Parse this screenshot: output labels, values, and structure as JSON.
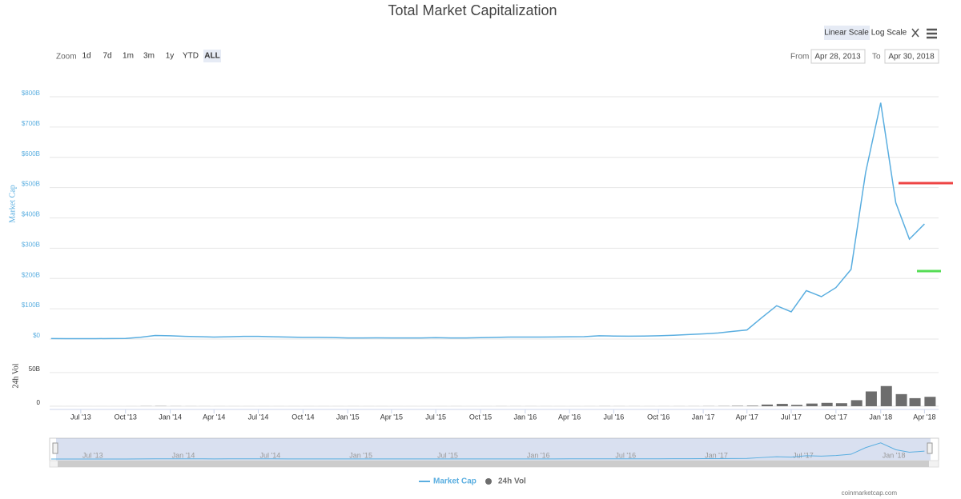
{
  "chart_data": {
    "type": "line",
    "title": "Total Market Capitalization",
    "zoom_label": "Zoom",
    "zoom_buttons": [
      "1d",
      "7d",
      "1m",
      "3m",
      "1y",
      "YTD",
      "ALL"
    ],
    "scale_buttons": [
      "Linear Scale",
      "Log Scale"
    ],
    "log_scale": false,
    "from_label": "From",
    "from_date": "Apr 28, 2013",
    "to_label": "To",
    "to_date": "Apr 30, 2018",
    "y_label": "Market Cap",
    "y2_label": "24h Vol",
    "credit": "coinmarketcap.com",
    "grid": true,
    "legend": "bottom",
    "xlim": [
      "2013-04-28",
      "2018-04-30"
    ],
    "xticks": [
      {
        "value": "2013-07",
        "label": "Jul '13"
      },
      {
        "value": "2013-10",
        "label": "Oct '13"
      },
      {
        "value": "2014-01",
        "label": "Jan '14"
      },
      {
        "value": "2014-04",
        "label": "Apr '14"
      },
      {
        "value": "2014-07",
        "label": "Jul '14"
      },
      {
        "value": "2014-10",
        "label": "Oct '14"
      },
      {
        "value": "2015-01",
        "label": "Jan '15"
      },
      {
        "value": "2015-04",
        "label": "Apr '15"
      },
      {
        "value": "2015-07",
        "label": "Jul '15"
      },
      {
        "value": "2015-10",
        "label": "Oct '15"
      },
      {
        "value": "2016-01",
        "label": "Jan '16"
      },
      {
        "value": "2016-04",
        "label": "Apr '16"
      },
      {
        "value": "2016-07",
        "label": "Jul '16"
      },
      {
        "value": "2016-10",
        "label": "Oct '16"
      },
      {
        "value": "2017-01",
        "label": "Jan '17"
      },
      {
        "value": "2017-04",
        "label": "Apr '17"
      },
      {
        "value": "2017-07",
        "label": "Jul '17"
      },
      {
        "value": "2017-10",
        "label": "Oct '17"
      },
      {
        "value": "2018-01",
        "label": "Jan '18"
      },
      {
        "value": "2018-04",
        "label": "Apr '18"
      }
    ],
    "ylim": [
      0,
      850
    ],
    "yticks": [
      {
        "value": 0,
        "label": "$0"
      },
      {
        "value": 100,
        "label": "$100B"
      },
      {
        "value": 200,
        "label": "$200B"
      },
      {
        "value": 300,
        "label": "$300B"
      },
      {
        "value": 400,
        "label": "$400B"
      },
      {
        "value": 500,
        "label": "$500B"
      },
      {
        "value": 600,
        "label": "$600B"
      },
      {
        "value": 700,
        "label": "$700B"
      },
      {
        "value": 800,
        "label": "$800B"
      }
    ],
    "y2lim": [
      0,
      63
    ],
    "y2ticks": [
      0,
      {
        "value": 50,
        "label": "50B"
      }
    ],
    "x": [
      "2013-05",
      "2013-06",
      "2013-07",
      "2013-08",
      "2013-09",
      "2013-10",
      "2013-11",
      "2013-12",
      "2014-01",
      "2014-02",
      "2014-03",
      "2014-04",
      "2014-05",
      "2014-06",
      "2014-07",
      "2014-08",
      "2014-09",
      "2014-10",
      "2014-11",
      "2014-12",
      "2015-01",
      "2015-02",
      "2015-03",
      "2015-04",
      "2015-05",
      "2015-06",
      "2015-07",
      "2015-08",
      "2015-09",
      "2015-10",
      "2015-11",
      "2015-12",
      "2016-01",
      "2016-02",
      "2016-03",
      "2016-04",
      "2016-05",
      "2016-06",
      "2016-07",
      "2016-08",
      "2016-09",
      "2016-10",
      "2016-11",
      "2016-12",
      "2017-01",
      "2017-02",
      "2017-03",
      "2017-04",
      "2017-05",
      "2017-06",
      "2017-07",
      "2017-08",
      "2017-09",
      "2017-10",
      "2017-11",
      "2017-12",
      "2018-01",
      "2018-02",
      "2018-03",
      "2018-04"
    ],
    "series": [
      {
        "name": "Market Cap",
        "color": "#5aaee0",
        "values": [
          1.5,
          1.3,
          1.2,
          1.4,
          1.6,
          2,
          6,
          12,
          11,
          9,
          8,
          6.5,
          7.5,
          9,
          9,
          7.5,
          6.5,
          5.5,
          5.5,
          5,
          3.5,
          3.5,
          4,
          3.5,
          3.5,
          3.7,
          4.5,
          3.7,
          3.6,
          4.5,
          5.5,
          6.5,
          6.5,
          6.5,
          7,
          7.5,
          8,
          11,
          10,
          9.5,
          10,
          11,
          12.5,
          15,
          17,
          20,
          25,
          30,
          70,
          110,
          90,
          160,
          140,
          170,
          230,
          550,
          780,
          450,
          330,
          380
        ]
      },
      {
        "name": "24h Vol",
        "color": "#6d6d6d",
        "axis": "y2",
        "values": [
          0.02,
          0.02,
          0.02,
          0.02,
          0.02,
          0.05,
          0.2,
          0.3,
          0.15,
          0.1,
          0.08,
          0.06,
          0.05,
          0.05,
          0.04,
          0.04,
          0.05,
          0.04,
          0.04,
          0.04,
          0.06,
          0.04,
          0.04,
          0.03,
          0.02,
          0.03,
          0.05,
          0.06,
          0.03,
          0.04,
          0.1,
          0.08,
          0.07,
          0.06,
          0.05,
          0.05,
          0.06,
          0.15,
          0.1,
          0.08,
          0.06,
          0.08,
          0.1,
          0.12,
          0.2,
          0.3,
          0.6,
          0.8,
          2.5,
          3.5,
          2,
          4,
          5,
          4.5,
          9,
          22,
          30,
          18,
          12,
          14
        ]
      }
    ]
  }
}
